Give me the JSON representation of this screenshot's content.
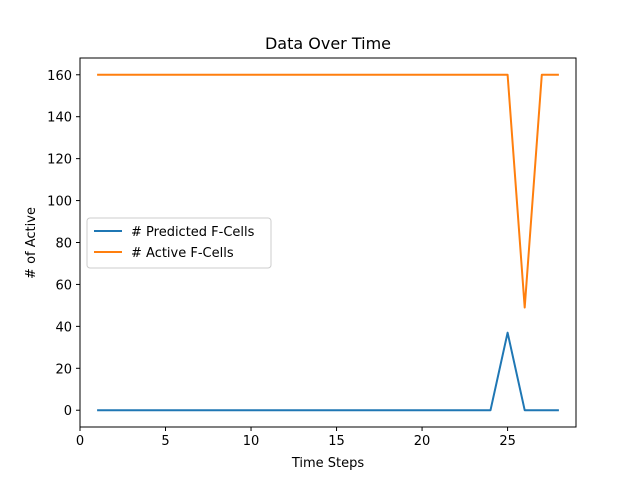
{
  "chart_data": {
    "type": "line",
    "title": "Data Over Time",
    "xlabel": "Time Steps",
    "ylabel": "# of Active",
    "xlim": [
      0,
      29
    ],
    "ylim": [
      -8,
      168
    ],
    "xticks": [
      0,
      5,
      10,
      15,
      20,
      25
    ],
    "yticks": [
      0,
      20,
      40,
      60,
      80,
      100,
      120,
      140,
      160
    ],
    "grid": false,
    "legend_position": "center-left",
    "x": [
      1,
      2,
      3,
      4,
      5,
      6,
      7,
      8,
      9,
      10,
      11,
      12,
      13,
      14,
      15,
      16,
      17,
      18,
      19,
      20,
      21,
      22,
      23,
      24,
      25,
      26,
      27,
      28
    ],
    "series": [
      {
        "name": "# Predicted F-Cells",
        "color": "#1f77b4",
        "values": [
          0,
          0,
          0,
          0,
          0,
          0,
          0,
          0,
          0,
          0,
          0,
          0,
          0,
          0,
          0,
          0,
          0,
          0,
          0,
          0,
          0,
          0,
          0,
          0,
          37,
          0,
          0,
          0
        ]
      },
      {
        "name": "# Active F-Cells",
        "color": "#ff7f0e",
        "values": [
          160,
          160,
          160,
          160,
          160,
          160,
          160,
          160,
          160,
          160,
          160,
          160,
          160,
          160,
          160,
          160,
          160,
          160,
          160,
          160,
          160,
          160,
          160,
          160,
          160,
          49,
          160,
          160
        ]
      }
    ]
  }
}
